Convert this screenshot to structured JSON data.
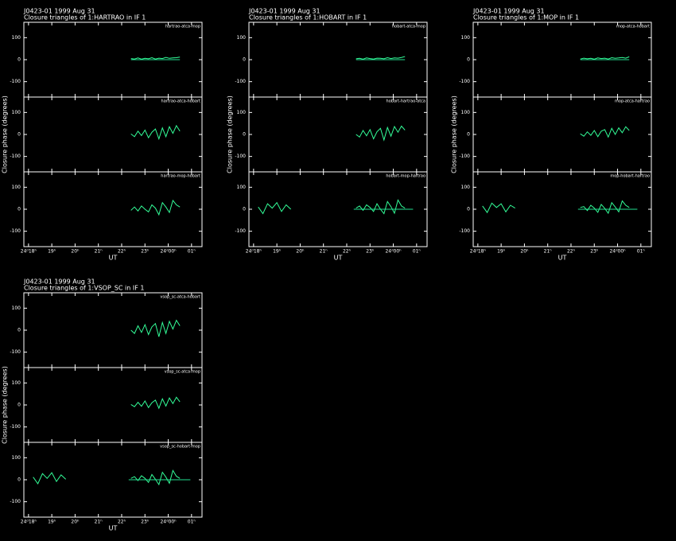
{
  "chart_data": [
    {
      "type": "line",
      "title": "J0423-01   1999 Aug 31",
      "subtitle": "Closure triangles of 1:HARTRAO in IF 1",
      "ylabel": "Closure phase   (degrees)",
      "xlabel": "UT",
      "xlim": [
        17.8,
        25.45
      ],
      "ylim": [
        -170,
        170
      ],
      "yticks": [
        -100,
        0,
        100
      ],
      "xticks": [
        {
          "value": 18,
          "label": "24ᵈ18ʰ"
        },
        {
          "value": 19,
          "label": "19ʰ"
        },
        {
          "value": 20,
          "label": "20ʰ"
        },
        {
          "value": 21,
          "label": "21ʰ"
        },
        {
          "value": 22,
          "label": "22ʰ"
        },
        {
          "value": 23,
          "label": "23ʰ"
        },
        {
          "value": 24,
          "label": "24ᵈ00ʰ"
        },
        {
          "value": 25,
          "label": "01ʰ"
        }
      ],
      "panels": [
        {
          "label": "hartrao-atca-mop",
          "series": [
            {
              "color": "#33ff99",
              "x": [
                22.4,
                22.55,
                22.7,
                22.85,
                23.0,
                23.15,
                23.3,
                23.45,
                23.6,
                23.75,
                23.9,
                24.05,
                24.2,
                24.35,
                24.5
              ],
              "values": [
                5,
                3,
                8,
                2,
                6,
                4,
                9,
                3,
                7,
                5,
                10,
                6,
                8,
                9,
                12
              ]
            },
            {
              "color": "#20e090",
              "x": [
                22.4,
                24.5
              ],
              "values": [
                0,
                0
              ]
            }
          ]
        },
        {
          "label": "hartrao-atca-hobart",
          "series": [
            {
              "color": "#33ff99",
              "x": [
                22.4,
                22.55,
                22.7,
                22.85,
                23.0,
                23.15,
                23.3,
                23.45,
                23.6,
                23.75,
                23.9,
                24.05,
                24.2,
                24.35,
                24.5
              ],
              "values": [
                2,
                -10,
                15,
                -5,
                20,
                -15,
                10,
                25,
                -20,
                30,
                -10,
                35,
                5,
                40,
                15
              ]
            }
          ]
        },
        {
          "label": "hartrao-mop-hobart",
          "series": [
            {
              "color": "#33ff99",
              "x": [
                22.4,
                22.55,
                22.7,
                22.85,
                23.0,
                23.15,
                23.3,
                23.45,
                23.6,
                23.75,
                23.9,
                24.05,
                24.2,
                24.35,
                24.5
              ],
              "values": [
                -5,
                10,
                -8,
                15,
                0,
                -12,
                20,
                5,
                -25,
                30,
                10,
                -15,
                40,
                20,
                10
              ]
            }
          ]
        }
      ]
    },
    {
      "type": "line",
      "title": "J0423-01   1999 Aug 31",
      "subtitle": "Closure triangles of 1:HOBART in IF 1",
      "ylabel": "Closure phase   (degrees)",
      "xlabel": "UT",
      "xlim": [
        17.8,
        25.45
      ],
      "ylim": [
        -170,
        170
      ],
      "yticks": [
        -100,
        0,
        100
      ],
      "xticks": [
        {
          "value": 18,
          "label": "24ᵈ18ʰ"
        },
        {
          "value": 19,
          "label": "19ʰ"
        },
        {
          "value": 20,
          "label": "20ʰ"
        },
        {
          "value": 21,
          "label": "21ʰ"
        },
        {
          "value": 22,
          "label": "22ʰ"
        },
        {
          "value": 23,
          "label": "23ʰ"
        },
        {
          "value": 24,
          "label": "24ᵈ00ʰ"
        },
        {
          "value": 25,
          "label": "01ʰ"
        }
      ],
      "panels": [
        {
          "label": "hobart-atca-mop",
          "series": [
            {
              "color": "#33ff99",
              "x": [
                22.4,
                22.55,
                22.7,
                22.85,
                23.0,
                23.15,
                23.3,
                23.45,
                23.6,
                23.75,
                23.9,
                24.05,
                24.2,
                24.35,
                24.5
              ],
              "values": [
                4,
                6,
                2,
                8,
                5,
                3,
                7,
                6,
                4,
                9,
                5,
                8,
                7,
                10,
                14
              ]
            },
            {
              "color": "#20e090",
              "x": [
                22.4,
                24.5
              ],
              "values": [
                0,
                0
              ]
            }
          ]
        },
        {
          "label": "hobart-hartrao-atca",
          "series": [
            {
              "color": "#33ff99",
              "x": [
                22.4,
                22.55,
                22.7,
                22.85,
                23.0,
                23.15,
                23.3,
                23.45,
                23.6,
                23.75,
                23.9,
                24.05,
                24.2,
                24.35,
                24.5
              ],
              "values": [
                0,
                -12,
                18,
                -6,
                22,
                -20,
                12,
                28,
                -25,
                32,
                -8,
                36,
                10,
                38,
                20
              ]
            }
          ]
        },
        {
          "label": "hobart-mop-hartrao",
          "series": [
            {
              "color": "#33ff99",
              "x": [
                18.2,
                18.4,
                18.6,
                18.8,
                19.0,
                19.2,
                19.4,
                19.6
              ],
              "values": [
                10,
                -20,
                25,
                5,
                30,
                -10,
                20,
                0
              ]
            },
            {
              "color": "#33ff99",
              "x": [
                22.4,
                22.55,
                22.7,
                22.85,
                23.0,
                23.15,
                23.3,
                23.45,
                23.6,
                23.75,
                23.9,
                24.05,
                24.2,
                24.35,
                24.5
              ],
              "values": [
                5,
                15,
                -5,
                20,
                8,
                -10,
                25,
                0,
                -20,
                35,
                12,
                -18,
                42,
                15,
                5
              ]
            },
            {
              "color": "#20e090",
              "x": [
                22.3,
                24.85
              ],
              "values": [
                0,
                0
              ]
            }
          ]
        }
      ]
    },
    {
      "type": "line",
      "title": "J0423-01   1999 Aug 31",
      "subtitle": "Closure triangles of 1:MOP in IF 1",
      "ylabel": "Closure phase   (degrees)",
      "xlabel": "UT",
      "xlim": [
        17.8,
        25.45
      ],
      "ylim": [
        -170,
        170
      ],
      "yticks": [
        -100,
        0,
        100
      ],
      "xticks": [
        {
          "value": 18,
          "label": "24ᵈ18ʰ"
        },
        {
          "value": 19,
          "label": "19ʰ"
        },
        {
          "value": 20,
          "label": "20ʰ"
        },
        {
          "value": 21,
          "label": "21ʰ"
        },
        {
          "value": 22,
          "label": "22ʰ"
        },
        {
          "value": 23,
          "label": "23ʰ"
        },
        {
          "value": 24,
          "label": "24ᵈ00ʰ"
        },
        {
          "value": 25,
          "label": "01ʰ"
        }
      ],
      "panels": [
        {
          "label": "mop-atca-hobart",
          "series": [
            {
              "color": "#33ff99",
              "x": [
                22.4,
                22.55,
                22.7,
                22.85,
                23.0,
                23.15,
                23.3,
                23.45,
                23.6,
                23.75,
                23.9,
                24.05,
                24.2,
                24.35,
                24.5
              ],
              "values": [
                3,
                7,
                4,
                6,
                2,
                8,
                5,
                7,
                3,
                9,
                6,
                8,
                10,
                7,
                13
              ]
            },
            {
              "color": "#20e090",
              "x": [
                22.4,
                24.5
              ],
              "values": [
                0,
                0
              ]
            }
          ]
        },
        {
          "label": "mop-atca-hartrao",
          "series": [
            {
              "color": "#33ff99",
              "x": [
                22.4,
                22.55,
                22.7,
                22.85,
                23.0,
                23.15,
                23.3,
                23.45,
                23.6,
                23.75,
                23.9,
                24.05,
                24.2,
                24.35,
                24.5
              ],
              "values": [
                3,
                -8,
                12,
                -4,
                18,
                -10,
                15,
                22,
                -12,
                28,
                0,
                30,
                8,
                35,
                18
              ]
            }
          ]
        },
        {
          "label": "mop-hobart-hartrao",
          "series": [
            {
              "color": "#33ff99",
              "x": [
                18.2,
                18.4,
                18.6,
                18.8,
                19.0,
                19.2,
                19.4,
                19.6
              ],
              "values": [
                15,
                -15,
                28,
                8,
                25,
                -12,
                18,
                5
              ]
            },
            {
              "color": "#33ff99",
              "x": [
                22.4,
                22.55,
                22.7,
                22.85,
                23.0,
                23.15,
                23.3,
                23.45,
                23.6,
                23.75,
                23.9,
                24.05,
                24.2,
                24.35,
                24.5
              ],
              "values": [
                8,
                12,
                -6,
                18,
                5,
                -14,
                22,
                4,
                -18,
                30,
                10,
                -12,
                38,
                18,
                8
              ]
            },
            {
              "color": "#20e090",
              "x": [
                22.3,
                24.85
              ],
              "values": [
                0,
                0
              ]
            }
          ]
        }
      ]
    },
    {
      "type": "line",
      "title": "J0423-01   1999 Aug 31",
      "subtitle": "Closure triangles of 1:VSOP_SC in IF 1",
      "ylabel": "Closure phase   (degrees)",
      "xlabel": "UT",
      "xlim": [
        17.8,
        25.45
      ],
      "ylim": [
        -170,
        170
      ],
      "yticks": [
        -100,
        0,
        100
      ],
      "xticks": [
        {
          "value": 18,
          "label": "24ᵈ18ʰ"
        },
        {
          "value": 19,
          "label": "19ʰ"
        },
        {
          "value": 20,
          "label": "20ʰ"
        },
        {
          "value": 21,
          "label": "21ʰ"
        },
        {
          "value": 22,
          "label": "22ʰ"
        },
        {
          "value": 23,
          "label": "23ʰ"
        },
        {
          "value": 24,
          "label": "24ᵈ00ʰ"
        },
        {
          "value": 25,
          "label": "01ʰ"
        }
      ],
      "panels": [
        {
          "label": "vsop_sc-atca-hobart",
          "series": [
            {
              "color": "#33ff99",
              "x": [
                22.4,
                22.55,
                22.7,
                22.85,
                23.0,
                23.15,
                23.3,
                23.45,
                23.6,
                23.75,
                23.9,
                24.05,
                24.2,
                24.35,
                24.5
              ],
              "values": [
                0,
                -15,
                20,
                -10,
                25,
                -20,
                15,
                30,
                -30,
                35,
                -15,
                40,
                5,
                45,
                20
              ]
            }
          ]
        },
        {
          "label": "vsop_sc-atca-mop",
          "series": [
            {
              "color": "#33ff99",
              "x": [
                22.4,
                22.55,
                22.7,
                22.85,
                23.0,
                23.15,
                23.3,
                23.45,
                23.6,
                23.75,
                23.9,
                24.05,
                24.2,
                24.35,
                24.5
              ],
              "values": [
                2,
                -8,
                12,
                -6,
                18,
                -12,
                10,
                22,
                -15,
                28,
                -5,
                32,
                6,
                35,
                14
              ]
            }
          ]
        },
        {
          "label": "vsop_sc-hobart-mop",
          "series": [
            {
              "color": "#33ff99",
              "x": [
                18.2,
                18.4,
                18.6,
                18.8,
                19.0,
                19.2,
                19.4,
                19.6
              ],
              "values": [
                12,
                -18,
                28,
                6,
                32,
                -8,
                22,
                2
              ]
            },
            {
              "color": "#33ff99",
              "x": [
                22.4,
                22.55,
                22.7,
                22.85,
                23.0,
                23.15,
                23.3,
                23.45,
                23.6,
                23.75,
                23.9,
                24.05,
                24.2,
                24.35,
                24.5
              ],
              "values": [
                6,
                14,
                -4,
                18,
                6,
                -12,
                24,
                2,
                -22,
                34,
                12,
                -16,
                42,
                16,
                6
              ]
            },
            {
              "color": "#20e090",
              "x": [
                22.3,
                24.95
              ],
              "values": [
                0,
                0
              ]
            }
          ]
        }
      ]
    }
  ]
}
